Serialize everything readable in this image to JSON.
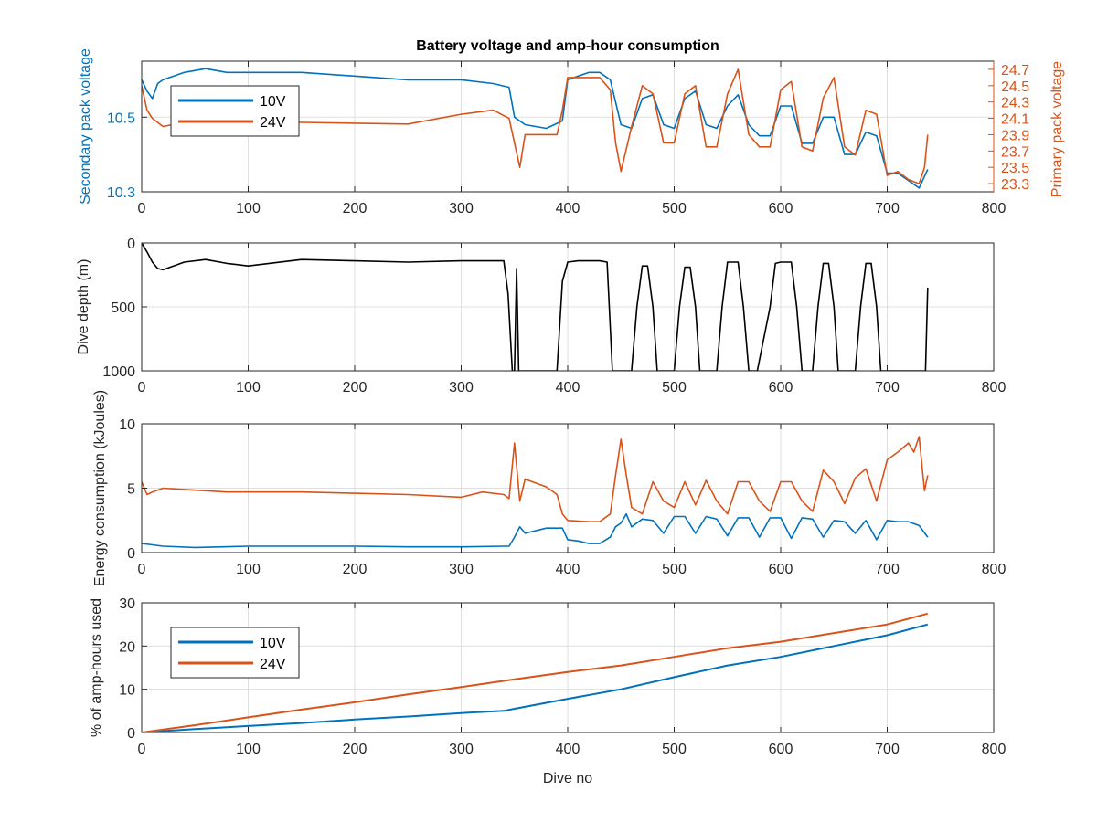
{
  "figure": {
    "title": "Battery voltage and amp-hour consumption"
  },
  "colors": {
    "v10": "#0072BD",
    "v24": "#D95319",
    "depth": "#000000",
    "grid": "#dfdfdf",
    "axis": "#262626"
  },
  "chart_data": [
    {
      "type": "line",
      "title": "Battery voltage and amp-hour consumption",
      "xlabel": "",
      "ylabel": "Secondary pack voltage",
      "ylabel_right": "Primary pack voltage",
      "xlim": [
        0,
        800
      ],
      "ylim": [
        10.3,
        10.65
      ],
      "ylim_right": [
        23.2,
        24.8
      ],
      "x_ticks": [
        0,
        100,
        200,
        300,
        400,
        500,
        600,
        700,
        800
      ],
      "y_ticks": [
        10.3,
        10.5
      ],
      "y_ticks_right": [
        23.3,
        23.5,
        23.7,
        23.9,
        24.1,
        24.3,
        24.5,
        24.7
      ],
      "grid": true,
      "legend_position": "top-left",
      "series": [
        {
          "name": "10V",
          "axis": "left",
          "x": [
            0,
            5,
            10,
            15,
            20,
            40,
            60,
            80,
            100,
            150,
            200,
            250,
            300,
            330,
            345,
            350,
            360,
            380,
            395,
            400,
            410,
            420,
            430,
            440,
            450,
            460,
            470,
            480,
            490,
            500,
            510,
            520,
            530,
            540,
            550,
            560,
            570,
            580,
            590,
            600,
            610,
            620,
            630,
            640,
            650,
            660,
            670,
            680,
            690,
            700,
            710,
            720,
            730,
            738
          ],
          "y": [
            10.6,
            10.57,
            10.55,
            10.59,
            10.6,
            10.62,
            10.63,
            10.62,
            10.62,
            10.62,
            10.61,
            10.6,
            10.6,
            10.59,
            10.58,
            10.5,
            10.48,
            10.47,
            10.49,
            10.6,
            10.61,
            10.62,
            10.62,
            10.6,
            10.48,
            10.47,
            10.55,
            10.56,
            10.48,
            10.47,
            10.55,
            10.57,
            10.48,
            10.47,
            10.53,
            10.56,
            10.48,
            10.45,
            10.45,
            10.53,
            10.53,
            10.43,
            10.43,
            10.5,
            10.5,
            10.4,
            10.4,
            10.46,
            10.45,
            10.35,
            10.35,
            10.33,
            10.31,
            10.36
          ]
        },
        {
          "name": "24V",
          "axis": "right",
          "x": [
            0,
            5,
            10,
            20,
            40,
            60,
            80,
            100,
            150,
            200,
            250,
            300,
            330,
            345,
            350,
            355,
            360,
            380,
            390,
            395,
            400,
            430,
            440,
            445,
            450,
            460,
            470,
            480,
            490,
            500,
            510,
            520,
            530,
            540,
            550,
            560,
            570,
            580,
            590,
            600,
            610,
            620,
            630,
            640,
            650,
            660,
            670,
            680,
            690,
            700,
            710,
            720,
            730,
            735,
            738
          ],
          "y": [
            24.5,
            24.2,
            24.1,
            24.0,
            24.05,
            24.08,
            24.07,
            24.07,
            24.05,
            24.04,
            24.03,
            24.15,
            24.2,
            24.1,
            23.8,
            23.5,
            23.9,
            23.9,
            23.9,
            24.2,
            24.6,
            24.6,
            24.45,
            23.8,
            23.45,
            24.0,
            24.5,
            24.4,
            23.8,
            23.8,
            24.4,
            24.5,
            23.75,
            23.75,
            24.4,
            24.7,
            23.9,
            23.75,
            23.75,
            24.45,
            24.55,
            23.75,
            23.7,
            24.35,
            24.6,
            23.75,
            23.65,
            24.2,
            24.15,
            23.4,
            23.45,
            23.35,
            23.3,
            23.5,
            23.9
          ]
        }
      ]
    },
    {
      "type": "line",
      "xlabel": "",
      "ylabel": "Dive depth (m)",
      "xlim": [
        0,
        800
      ],
      "ylim": [
        1000,
        0
      ],
      "x_ticks": [
        0,
        100,
        200,
        300,
        400,
        500,
        600,
        700,
        800
      ],
      "y_ticks": [
        0,
        500,
        1000
      ],
      "grid": true,
      "series": [
        {
          "x": [
            0,
            5,
            10,
            15,
            20,
            40,
            60,
            80,
            100,
            150,
            200,
            250,
            300,
            340,
            344,
            348,
            350,
            352,
            354,
            356,
            360,
            390,
            395,
            400,
            410,
            420,
            430,
            437,
            442,
            445,
            460,
            465,
            470,
            475,
            480,
            484,
            488,
            500,
            505,
            510,
            515,
            520,
            524,
            528,
            540,
            545,
            550,
            560,
            565,
            570,
            574,
            578,
            590,
            595,
            600,
            610,
            615,
            620,
            624,
            628,
            630,
            635,
            640,
            645,
            650,
            654,
            658,
            670,
            675,
            680,
            685,
            690,
            694,
            698,
            710,
            736,
            738
          ],
          "y": [
            0,
            70,
            150,
            200,
            210,
            150,
            130,
            160,
            180,
            130,
            140,
            150,
            140,
            140,
            400,
            1000,
            1000,
            200,
            1000,
            1000,
            1000,
            1000,
            300,
            150,
            140,
            140,
            140,
            150,
            1000,
            1000,
            1000,
            500,
            180,
            180,
            500,
            1000,
            1000,
            1000,
            500,
            190,
            190,
            500,
            1000,
            1000,
            1000,
            500,
            150,
            150,
            500,
            1000,
            1000,
            1000,
            500,
            160,
            150,
            150,
            500,
            1000,
            1000,
            1000,
            1000,
            500,
            160,
            160,
            500,
            1000,
            1000,
            1000,
            500,
            160,
            160,
            500,
            1000,
            1000,
            1000,
            1000,
            350
          ]
        }
      ]
    },
    {
      "type": "line",
      "xlabel": "",
      "ylabel": "Energy consumption (kJoules)",
      "xlim": [
        0,
        800
      ],
      "ylim": [
        0,
        10
      ],
      "x_ticks": [
        0,
        100,
        200,
        300,
        400,
        500,
        600,
        700,
        800
      ],
      "y_ticks": [
        0,
        5,
        10
      ],
      "grid": true,
      "series": [
        {
          "name": "10V",
          "x": [
            0,
            10,
            20,
            50,
            100,
            150,
            200,
            250,
            300,
            340,
            345,
            350,
            355,
            360,
            380,
            395,
            400,
            410,
            420,
            430,
            440,
            445,
            450,
            455,
            460,
            470,
            480,
            490,
            500,
            510,
            520,
            530,
            540,
            550,
            560,
            570,
            580,
            590,
            600,
            610,
            620,
            630,
            640,
            650,
            660,
            670,
            680,
            690,
            700,
            710,
            720,
            730,
            738
          ],
          "y": [
            0.7,
            0.6,
            0.5,
            0.4,
            0.5,
            0.5,
            0.5,
            0.45,
            0.45,
            0.5,
            0.5,
            1.2,
            2.0,
            1.5,
            1.9,
            1.9,
            1.0,
            0.9,
            0.7,
            0.7,
            1.2,
            2.0,
            2.3,
            3.0,
            2.0,
            2.6,
            2.5,
            1.5,
            2.8,
            2.8,
            1.5,
            2.8,
            2.6,
            1.3,
            2.7,
            2.7,
            1.2,
            2.7,
            2.7,
            1.1,
            2.7,
            2.6,
            1.2,
            2.5,
            2.4,
            1.5,
            2.5,
            1.0,
            2.5,
            2.4,
            2.4,
            2.1,
            1.2
          ]
        },
        {
          "name": "24V",
          "x": [
            0,
            5,
            10,
            20,
            40,
            60,
            80,
            100,
            150,
            200,
            250,
            300,
            320,
            340,
            345,
            350,
            355,
            360,
            380,
            390,
            395,
            400,
            420,
            430,
            440,
            445,
            450,
            455,
            460,
            470,
            480,
            490,
            500,
            510,
            520,
            530,
            540,
            550,
            560,
            570,
            580,
            590,
            600,
            610,
            620,
            630,
            640,
            650,
            660,
            670,
            680,
            690,
            700,
            710,
            720,
            725,
            730,
            735,
            738
          ],
          "y": [
            5.5,
            4.5,
            4.7,
            5.0,
            4.9,
            4.8,
            4.7,
            4.7,
            4.7,
            4.6,
            4.5,
            4.3,
            4.7,
            4.5,
            4.2,
            8.5,
            4.0,
            5.7,
            5.1,
            4.5,
            3.0,
            2.5,
            2.4,
            2.4,
            3.0,
            6.0,
            8.8,
            6.0,
            3.5,
            3.0,
            5.5,
            4.0,
            3.5,
            5.5,
            3.7,
            5.6,
            4.0,
            3.0,
            5.5,
            5.5,
            4.0,
            3.2,
            5.5,
            5.5,
            4.0,
            3.2,
            6.4,
            5.5,
            3.8,
            5.8,
            6.5,
            4.0,
            7.2,
            7.8,
            8.5,
            7.8,
            9.0,
            4.8,
            6.0
          ]
        }
      ]
    },
    {
      "type": "line",
      "xlabel": "Dive no",
      "ylabel": "% of amp-hours used",
      "xlim": [
        0,
        800
      ],
      "ylim": [
        0,
        30
      ],
      "x_ticks": [
        0,
        100,
        200,
        300,
        400,
        500,
        600,
        700,
        800
      ],
      "y_ticks": [
        0,
        10,
        20,
        30
      ],
      "grid": true,
      "legend_position": "top-left",
      "series": [
        {
          "name": "10V",
          "x": [
            0,
            50,
            100,
            150,
            200,
            250,
            300,
            340,
            350,
            400,
            450,
            500,
            550,
            600,
            650,
            700,
            738
          ],
          "y": [
            0,
            0.8,
            1.5,
            2.2,
            3.0,
            3.7,
            4.5,
            5.0,
            5.5,
            7.8,
            10.0,
            12.8,
            15.5,
            17.5,
            20.0,
            22.5,
            25.0
          ]
        },
        {
          "name": "24V",
          "x": [
            0,
            50,
            100,
            150,
            200,
            250,
            300,
            350,
            400,
            450,
            500,
            550,
            600,
            650,
            700,
            738
          ],
          "y": [
            0,
            1.7,
            3.5,
            5.3,
            7.0,
            8.8,
            10.5,
            12.3,
            14.0,
            15.5,
            17.5,
            19.5,
            21.0,
            23.0,
            25.0,
            27.5
          ]
        }
      ]
    }
  ]
}
